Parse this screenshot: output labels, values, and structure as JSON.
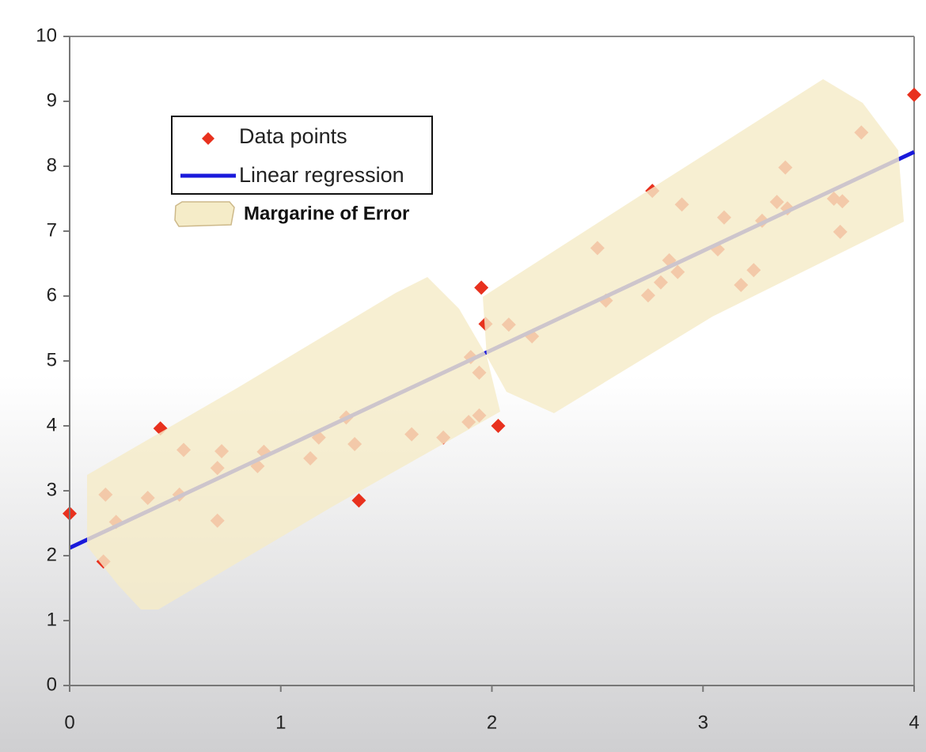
{
  "chart_data": {
    "type": "scatter",
    "xlim": [
      0,
      4
    ],
    "xticks": [
      0,
      1,
      2,
      3,
      4
    ],
    "ylim": [
      0,
      10
    ],
    "yticks": [
      0,
      1,
      2,
      3,
      4,
      5,
      6,
      7,
      8,
      9,
      10
    ],
    "series": [
      {
        "name": "Data points",
        "type": "scatter",
        "color": "#e8311e",
        "x": [
          0,
          0.16,
          0.17,
          0.22,
          0.37,
          0.43,
          0.52,
          0.54,
          0.7,
          0.7,
          0.72,
          0.89,
          0.92,
          1.14,
          1.18,
          1.31,
          1.35,
          1.37,
          1.62,
          1.77,
          1.89,
          1.9,
          1.94,
          1.94,
          1.95,
          1.97,
          2.03,
          2.08,
          2.19,
          2.5,
          2.54,
          2.74,
          2.76,
          2.8,
          2.84,
          2.88,
          2.9,
          3.07,
          3.1,
          3.18,
          3.24,
          3.28,
          3.35,
          3.39,
          3.4,
          3.62,
          3.66,
          3.65,
          3.75,
          4.0
        ],
        "values": [
          2.65,
          1.91,
          2.94,
          2.52,
          2.89,
          3.96,
          2.94,
          3.63,
          3.35,
          2.54,
          3.61,
          3.38,
          3.6,
          3.5,
          3.82,
          4.13,
          3.72,
          2.85,
          3.87,
          3.82,
          4.06,
          5.06,
          4.82,
          4.16,
          6.13,
          5.57,
          4.0,
          5.56,
          5.38,
          6.74,
          5.93,
          6.01,
          7.62,
          6.21,
          6.55,
          6.37,
          7.41,
          6.72,
          7.21,
          6.17,
          6.4,
          7.16,
          7.45,
          7.98,
          7.35,
          7.5,
          7.46,
          6.99,
          8.52,
          9.1
        ]
      },
      {
        "name": "Linear regression",
        "type": "line",
        "color": "#1a1adb",
        "x": [
          0,
          4
        ],
        "values": [
          2.12,
          8.22
        ]
      }
    ],
    "margin_band": {
      "name": "Margarine of Error",
      "color": "#f5ecc8"
    }
  }
}
